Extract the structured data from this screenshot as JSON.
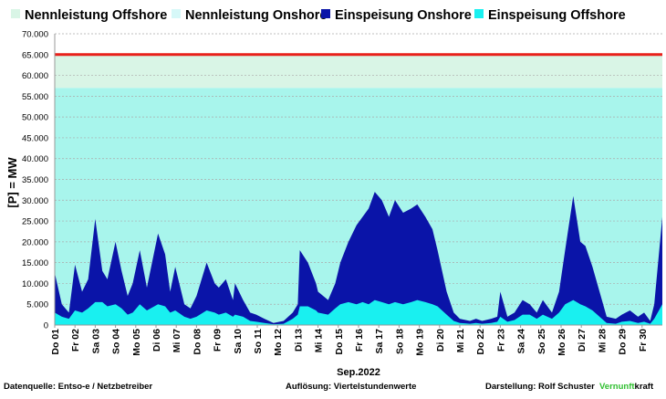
{
  "chart_data": {
    "type": "area",
    "title": "",
    "xlabel": "Sep.2022",
    "ylabel": "[P] = MW",
    "ylim": [
      0,
      70000
    ],
    "yticks": [
      "0",
      "5.000",
      "10.000",
      "15.000",
      "20.000",
      "25.000",
      "30.000",
      "35.000",
      "40.000",
      "45.000",
      "50.000",
      "55.000",
      "60.000",
      "65.000",
      "70.000"
    ],
    "ytick_values": [
      0,
      5000,
      10000,
      15000,
      20000,
      25000,
      30000,
      35000,
      40000,
      45000,
      50000,
      55000,
      60000,
      65000,
      70000
    ],
    "grid": true,
    "legend_position": "top",
    "xlim": [
      0,
      30
    ],
    "xtick_labels": [
      "Do 01",
      "Fr 02",
      "Sa 03",
      "So 04",
      "Mo 05",
      "Di 06",
      "Mi 07",
      "Do 08",
      "Fr 09",
      "Sa 10",
      "So 11",
      "Mo 12",
      "Di 13",
      "Mi 14",
      "Do 15",
      "Fr 16",
      "Sa 17",
      "So 18",
      "Mo 19",
      "Di 20",
      "Mi 21",
      "Do 22",
      "Fr 23",
      "Sa 24",
      "So 25",
      "Mo 26",
      "Di 27",
      "Mi 28",
      "Do 29",
      "Fr 30"
    ],
    "legend": [
      {
        "name": "Nennleistung Offshore",
        "color": "#d9f5e6"
      },
      {
        "name": "Nennleistung Onshore",
        "color": "#d6f8f8"
      },
      {
        "name": "Einspeisung Onshore",
        "color": "#0a14a8"
      },
      {
        "name": "Einspeisung Offshore",
        "color": "#19f0f0"
      }
    ],
    "capacity": {
      "nennleistung_onshore": 57000,
      "nennleistung_offshore": 8000,
      "total_line": 65000,
      "total_line_color": "#e8211b",
      "onshore_fill": "#a8f5ec",
      "offshore_fill": "#d9f5e6"
    },
    "x": [
      0,
      0.35,
      0.7,
      1.0,
      1.35,
      1.65,
      2.0,
      2.35,
      2.6,
      3.0,
      3.3,
      3.6,
      3.85,
      4.2,
      4.55,
      5.1,
      5.45,
      5.7,
      5.95,
      6.4,
      6.7,
      7.0,
      7.5,
      7.9,
      8.1,
      8.45,
      8.8,
      8.9,
      9.3,
      9.65,
      9.95,
      10.35,
      10.8,
      11.3,
      11.75,
      12.0,
      12.1,
      12.5,
      12.9,
      13.0,
      13.5,
      13.85,
      14.1,
      14.5,
      14.9,
      15.2,
      15.5,
      15.8,
      16.15,
      16.5,
      16.8,
      17.2,
      17.6,
      17.9,
      18.3,
      18.65,
      18.9,
      19.35,
      19.7,
      20.0,
      20.5,
      20.8,
      21.1,
      21.55,
      21.85,
      22.0,
      22.35,
      22.7,
      23.1,
      23.45,
      23.8,
      24.1,
      24.55,
      24.9,
      25.2,
      25.6,
      25.95,
      26.2,
      26.55,
      26.9,
      27.25,
      27.7,
      28.0,
      28.4,
      28.8,
      29.1,
      29.4,
      29.6,
      30.0
    ],
    "series": [
      {
        "name": "Einspeisung Offshore",
        "color": "#19f0f0",
        "values": [
          3000,
          2000,
          1500,
          3500,
          3000,
          4000,
          5500,
          5500,
          4500,
          5000,
          4000,
          2500,
          3000,
          5000,
          3500,
          5000,
          4500,
          3000,
          3500,
          2000,
          1500,
          2000,
          3500,
          3000,
          2500,
          3000,
          2000,
          2500,
          2000,
          1000,
          800,
          500,
          200,
          300,
          1500,
          2500,
          4500,
          4500,
          3500,
          3000,
          2500,
          4000,
          5000,
          5500,
          5000,
          5500,
          5000,
          6000,
          5500,
          5000,
          5500,
          5000,
          5500,
          6000,
          5500,
          5000,
          4500,
          2500,
          1000,
          500,
          300,
          500,
          300,
          500,
          800,
          2000,
          800,
          1200,
          2500,
          2500,
          1500,
          2500,
          1500,
          3000,
          5000,
          6000,
          5000,
          4500,
          3500,
          2000,
          500,
          300,
          800,
          1000,
          500,
          800,
          300,
          1500,
          5000
        ]
      },
      {
        "name": "Einspeisung Onshore",
        "color": "#0a14a8",
        "values": [
          9500,
          3000,
          1500,
          11000,
          5000,
          7000,
          20000,
          7500,
          6500,
          15000,
          9000,
          4500,
          7000,
          13000,
          5500,
          17000,
          12500,
          5000,
          10500,
          3000,
          2500,
          5000,
          11500,
          7000,
          6500,
          8000,
          4000,
          7500,
          4000,
          2000,
          1700,
          1000,
          300,
          700,
          1500,
          2500,
          13500,
          10500,
          6500,
          5000,
          3500,
          6000,
          10000,
          14500,
          19000,
          20500,
          23000,
          26000,
          24500,
          21000,
          24500,
          22000,
          22500,
          23000,
          20500,
          18000,
          13500,
          5500,
          2000,
          1000,
          700,
          1000,
          700,
          1000,
          1200,
          6000,
          1200,
          1800,
          3500,
          2500,
          1500,
          3500,
          1500,
          5000,
          13000,
          25000,
          15000,
          14500,
          10500,
          6000,
          1500,
          1200,
          1700,
          2500,
          1500,
          2200,
          700,
          3500,
          21000
        ]
      }
    ]
  },
  "footer": {
    "source": "Datenquelle:  Entso-e  / Netzbetreiber",
    "resolution": "Auflösung: Viertelstundenwerte",
    "author": "Darstellung:  Rolf Schuster",
    "brand_green": "Vernunft",
    "brand_black": "kraft"
  }
}
